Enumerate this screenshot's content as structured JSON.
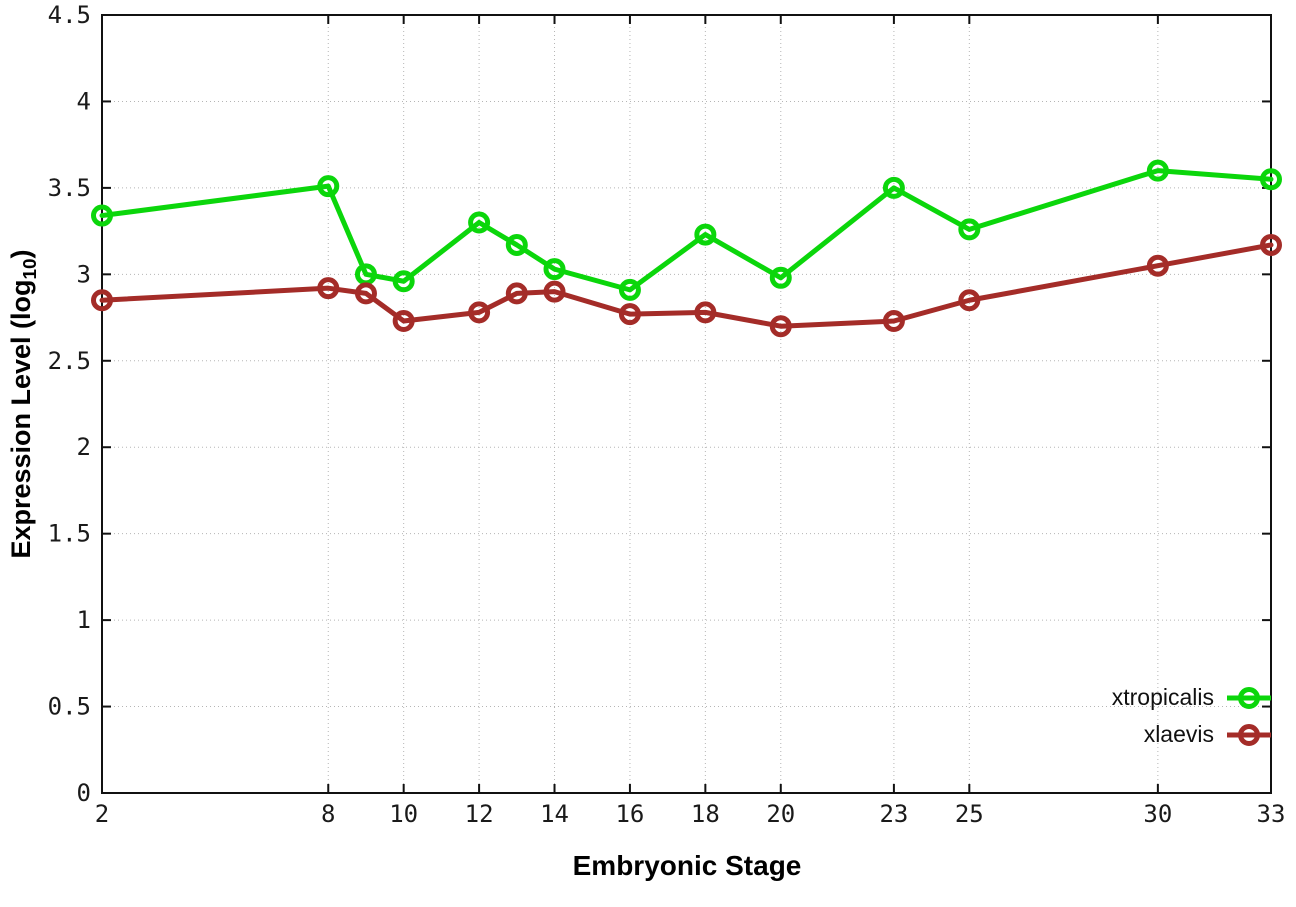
{
  "chart_data": {
    "type": "line",
    "title": "",
    "xlabel": "Embryonic Stage",
    "ylabel": "Expression Level (log10)",
    "ylabel_parts": {
      "prefix": "Expression Level (log",
      "sub": "10",
      "suffix": ")"
    },
    "xlim": [
      2,
      33
    ],
    "ylim": [
      0,
      4.5
    ],
    "grid": true,
    "legend_position": "inside-bottom-right",
    "marker": "open-circle",
    "x": [
      2,
      8,
      9,
      10,
      12,
      13,
      14,
      16,
      18,
      20,
      23,
      25,
      30,
      33
    ],
    "series": [
      {
        "name": "xtropicalis",
        "color": "#0bd60b",
        "values": [
          3.34,
          3.51,
          3.0,
          2.96,
          3.3,
          3.17,
          3.03,
          2.91,
          3.23,
          2.98,
          3.5,
          3.26,
          3.6,
          3.55
        ]
      },
      {
        "name": "xlaevis",
        "color": "#a42c28",
        "values": [
          2.85,
          2.92,
          2.89,
          2.73,
          2.78,
          2.89,
          2.9,
          2.77,
          2.78,
          2.7,
          2.73,
          2.85,
          3.05,
          3.17
        ]
      }
    ],
    "xticks": [
      2,
      8,
      10,
      12,
      14,
      16,
      18,
      20,
      23,
      25,
      30,
      33
    ],
    "xtick_labels": [
      "2",
      "8",
      "10",
      "12",
      "14",
      "16",
      "18",
      "20",
      "23",
      "25",
      "30",
      "33"
    ],
    "yticks": [
      0,
      0.5,
      1,
      1.5,
      2,
      2.5,
      3,
      3.5,
      4,
      4.5
    ],
    "ytick_labels": [
      "0",
      "0.5",
      "1",
      "1.5",
      "2",
      "2.5",
      "3",
      "3.5",
      "4",
      "4.5"
    ]
  },
  "colors": {
    "background": "#ffffff",
    "border": "#111111",
    "grid": "#b5b5b5",
    "tick_text": "#1a1a1a",
    "label_text": "#000000"
  }
}
